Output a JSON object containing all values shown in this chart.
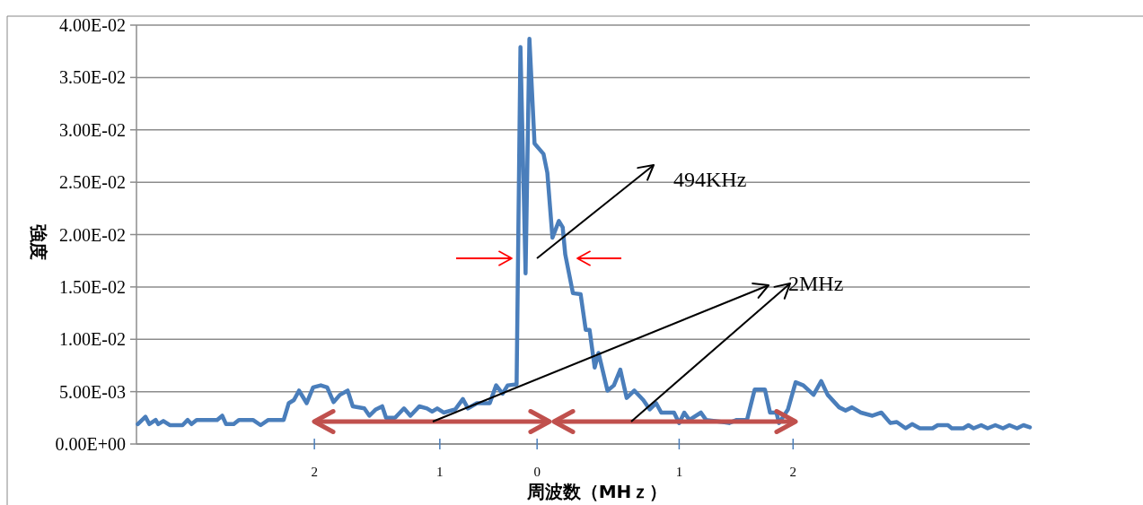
{
  "chart_data": {
    "type": "line",
    "xlabel": "周波数（MHｚ）",
    "ylabel": "強度",
    "xlim": [
      -3.13,
      3.85
    ],
    "xticks": [
      {
        "value": -1.74,
        "label": "2"
      },
      {
        "value": -0.76,
        "label": "1"
      },
      {
        "value": 0,
        "label": "0"
      },
      {
        "value": 1.11,
        "label": "1"
      },
      {
        "value": 2,
        "label": "2"
      }
    ],
    "ylim": [
      0,
      0.04
    ],
    "yticks": [
      {
        "value": 0,
        "label": "0.00E+00"
      },
      {
        "value": 0.005,
        "label": "5.00E-03"
      },
      {
        "value": 0.01,
        "label": "1.00E-02"
      },
      {
        "value": 0.015,
        "label": "1.50E-02"
      },
      {
        "value": 0.02,
        "label": "2.00E-02"
      },
      {
        "value": 0.025,
        "label": "2.50E-02"
      },
      {
        "value": 0.03,
        "label": "3.00E-02"
      },
      {
        "value": 0.035,
        "label": "3.50E-02"
      },
      {
        "value": 0.04,
        "label": "4.00E-02"
      }
    ],
    "grid": "y",
    "x": [
      -3.12,
      -3.06,
      -3.03,
      -2.98,
      -2.96,
      -2.92,
      -2.87,
      -2.77,
      -2.73,
      -2.7,
      -2.66,
      -2.5,
      -2.46,
      -2.43,
      -2.37,
      -2.33,
      -2.22,
      -2.16,
      -2.1,
      -1.98,
      -1.94,
      -1.9,
      -1.86,
      -1.8,
      -1.75,
      -1.69,
      -1.64,
      -1.59,
      -1.54,
      -1.48,
      -1.44,
      -1.35,
      -1.31,
      -1.26,
      -1.21,
      -1.18,
      -1.11,
      -1.04,
      -0.99,
      -0.92,
      -0.86,
      -0.82,
      -0.78,
      -0.73,
      -0.64,
      -0.58,
      -0.54,
      -0.47,
      -0.37,
      -0.32,
      -0.27,
      -0.23,
      -0.16,
      -0.13,
      -0.09,
      -0.06,
      -0.02,
      0.05,
      0.08,
      0.12,
      0.17,
      0.2,
      0.22,
      0.28,
      0.34,
      0.38,
      0.41,
      0.45,
      0.48,
      0.55,
      0.6,
      0.65,
      0.7,
      0.76,
      0.83,
      0.88,
      0.93,
      0.97,
      1.07,
      1.11,
      1.15,
      1.19,
      1.28,
      1.32,
      1.45,
      1.5,
      1.56,
      1.64,
      1.7,
      1.78,
      1.82,
      1.87,
      1.89,
      1.96,
      2.02,
      2.08,
      2.16,
      2.22,
      2.27,
      2.36,
      2.41,
      2.46,
      2.53,
      2.62,
      2.69,
      2.76,
      2.81,
      2.88,
      2.93,
      2.99,
      3.09,
      3.13,
      3.21,
      3.24,
      3.33,
      3.37,
      3.41,
      3.47,
      3.52,
      3.58,
      3.64,
      3.69,
      3.75,
      3.8,
      3.85
    ],
    "series": [
      {
        "color": "#4a7ebb",
        "values": [
          0.0019,
          0.0026,
          0.0019,
          0.0023,
          0.0019,
          0.0022,
          0.0018,
          0.0018,
          0.0023,
          0.0019,
          0.0023,
          0.0023,
          0.0027,
          0.0019,
          0.0019,
          0.0023,
          0.0023,
          0.0018,
          0.0023,
          0.0023,
          0.0039,
          0.0042,
          0.0051,
          0.0039,
          0.0054,
          0.0056,
          0.0054,
          0.004,
          0.0047,
          0.0051,
          0.0036,
          0.0034,
          0.0027,
          0.0033,
          0.0036,
          0.0025,
          0.0025,
          0.0034,
          0.0027,
          0.0036,
          0.0034,
          0.0031,
          0.0034,
          0.003,
          0.0033,
          0.0043,
          0.0034,
          0.0039,
          0.0039,
          0.0056,
          0.0048,
          0.0056,
          0.0057,
          0.0379,
          0.0163,
          0.0387,
          0.0287,
          0.0277,
          0.0259,
          0.0197,
          0.0213,
          0.0207,
          0.0181,
          0.0144,
          0.0143,
          0.0109,
          0.0109,
          0.0073,
          0.0087,
          0.0051,
          0.0056,
          0.0071,
          0.0044,
          0.0051,
          0.0042,
          0.0033,
          0.0039,
          0.003,
          0.003,
          0.002,
          0.003,
          0.0023,
          0.003,
          0.0023,
          0.0021,
          0.002,
          0.0023,
          0.0023,
          0.0052,
          0.0052,
          0.003,
          0.003,
          0.002,
          0.0033,
          0.0059,
          0.0056,
          0.0047,
          0.006,
          0.0047,
          0.0035,
          0.0032,
          0.0035,
          0.003,
          0.0027,
          0.003,
          0.002,
          0.0021,
          0.0015,
          0.0019,
          0.0015,
          0.0015,
          0.0018,
          0.0018,
          0.0015,
          0.0015,
          0.0018,
          0.0015,
          0.0018,
          0.0015,
          0.0018,
          0.0015,
          0.0018,
          0.0015,
          0.0018,
          0.0016
        ]
      }
    ],
    "annotations": [
      "494KHz",
      "2MHz"
    ]
  }
}
